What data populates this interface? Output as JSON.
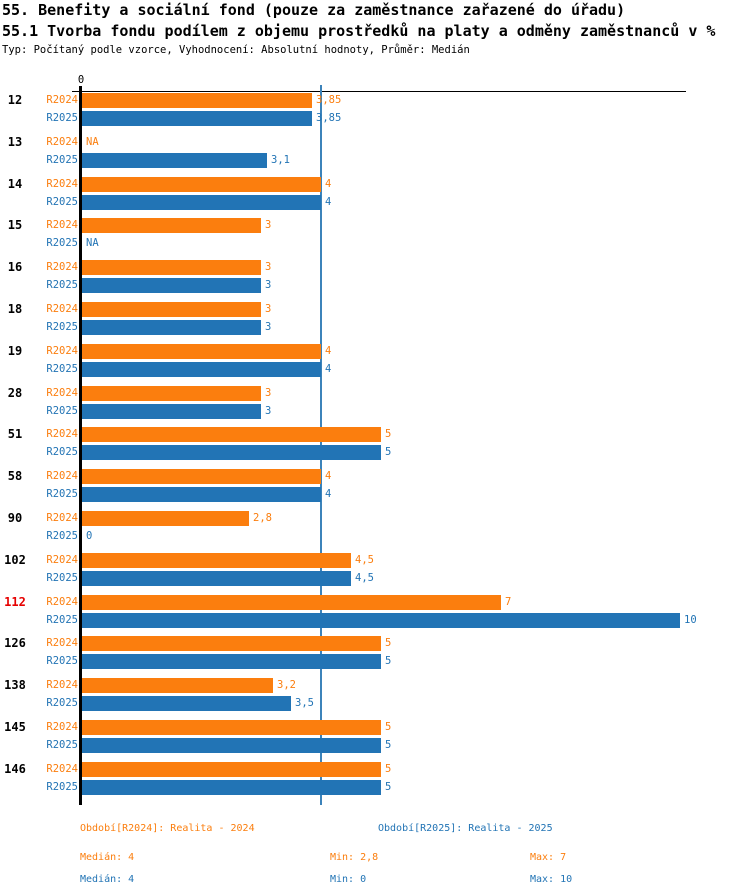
{
  "page": {
    "title": "55. Benefity a sociální fond (pouze za zaměstnance zařazené do úřadu)",
    "subtitle": "55.1 Tvorba fondu podílem z objemu prostředků na platy a odměny zaměstnanců v %",
    "meta": "Typ: Počítaný podle vzorce, Vyhodnocení: Absolutní hodnoty, Průměr: Medián"
  },
  "chart_data": {
    "type": "bar",
    "orientation": "horizontal",
    "title": "55.1 Tvorba fondu podílem z objemu prostředků na platy a odměny zaměstnanců v %",
    "xlim": [
      0,
      10
    ],
    "axis_zero_label": "0",
    "median_line_value": 4,
    "median_line_color": "#3c83ba",
    "grid": false,
    "categories": [
      "12",
      "13",
      "14",
      "15",
      "16",
      "18",
      "19",
      "28",
      "51",
      "58",
      "90",
      "102",
      "112",
      "126",
      "138",
      "145",
      "146"
    ],
    "category_color": "#000000",
    "highlight_category": "112",
    "highlight_color": "#e60000",
    "na_label": "NA",
    "series": [
      {
        "name": "R2024",
        "color": "#fb7e0e",
        "values": [
          3.85,
          null,
          4,
          3,
          3,
          3,
          4,
          3,
          5,
          4,
          2.8,
          4.5,
          7,
          5,
          3.2,
          5,
          5
        ],
        "labels": [
          "3,85",
          "NA",
          "4",
          "3",
          "3",
          "3",
          "4",
          "3",
          "5",
          "4",
          "2,8",
          "4,5",
          "7",
          "5",
          "3,2",
          "5",
          "5"
        ]
      },
      {
        "name": "R2025",
        "color": "#2274b5",
        "values": [
          3.85,
          3.1,
          4,
          null,
          3,
          3,
          4,
          3,
          5,
          4,
          0,
          4.5,
          10,
          5,
          3.5,
          5,
          5
        ],
        "labels": [
          "3,85",
          "3,1",
          "4",
          "NA",
          "3",
          "3",
          "4",
          "3",
          "5",
          "4",
          "0",
          "4,5",
          "10",
          "5",
          "3,5",
          "5",
          "5"
        ]
      }
    ]
  },
  "footer": {
    "legend": [
      {
        "label": "Období[R2024]: Realita - 2024",
        "color": "#fb7e0e"
      },
      {
        "label": "Období[R2025]: Realita - 2025",
        "color": "#2274b5"
      }
    ],
    "stats": [
      {
        "median": "Medián: 4",
        "min": "Min: 2,8",
        "max": "Max: 7",
        "color": "#fb7e0e"
      },
      {
        "median": "Medián: 4",
        "min": "Min: 0",
        "max": "Max: 10",
        "color": "#2274b5"
      }
    ]
  }
}
